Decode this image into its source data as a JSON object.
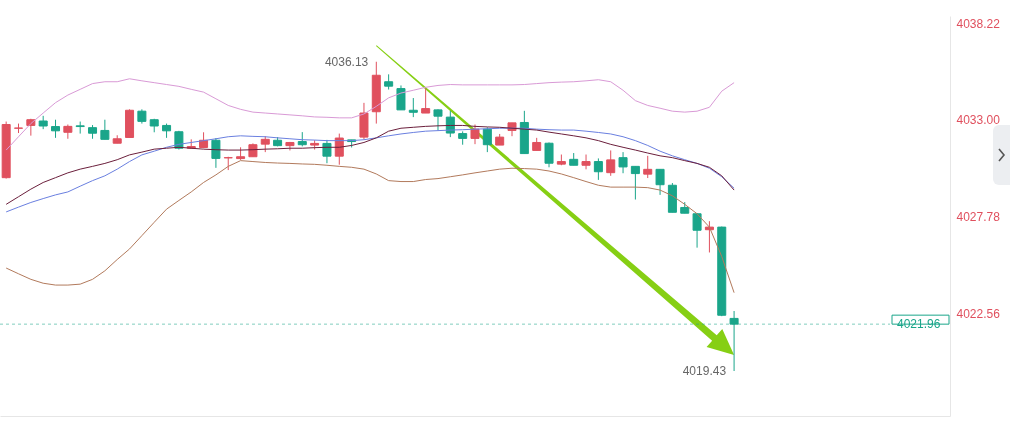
{
  "chart_data": {
    "type": "candlestick",
    "categories": [
      null,
      null,
      null,
      null,
      null,
      null,
      null,
      null,
      null,
      null,
      null,
      null,
      null,
      null,
      null,
      null,
      null,
      null,
      null,
      null,
      null,
      null,
      null,
      null,
      null,
      null,
      null,
      null,
      null,
      null,
      null,
      null,
      null,
      null,
      null,
      null,
      null,
      null,
      null,
      null,
      null,
      null,
      null,
      null,
      null,
      null,
      null,
      null,
      null,
      null,
      null,
      null,
      null,
      null,
      null,
      null,
      null,
      null,
      null,
      null,
      null,
      null,
      null,
      null,
      null,
      null,
      null,
      null,
      null,
      null,
      null,
      null,
      null,
      null,
      null,
      null,
      null
    ],
    "ohlc": [
      [
        4029.87,
        4032.9,
        4029.82,
        4032.74
      ],
      [
        4032.54,
        4032.79,
        4032.28,
        4032.55
      ],
      [
        4032.69,
        4033.05,
        4032.14,
        4033.0
      ],
      [
        4032.93,
        4033.21,
        4032.49,
        4032.66
      ],
      [
        4032.63,
        4033.0,
        4032.02,
        4032.4
      ],
      [
        4032.32,
        4032.74,
        4031.97,
        4032.64
      ],
      [
        4032.67,
        4032.9,
        4032.25,
        4032.63
      ],
      [
        4032.57,
        4032.71,
        4031.97,
        4032.27
      ],
      [
        4032.42,
        4033.0,
        4031.94,
        4031.94
      ],
      [
        4031.73,
        4032.16,
        4031.73,
        4031.97
      ],
      [
        4032.04,
        4033.56,
        4032.04,
        4033.51
      ],
      [
        4033.46,
        4033.56,
        4032.79,
        4032.91
      ],
      [
        4033.0,
        4033.05,
        4032.32,
        4032.66
      ],
      [
        4032.69,
        4032.79,
        4032.02,
        4032.4
      ],
      [
        4032.35,
        4032.4,
        4031.39,
        4031.46
      ],
      [
        4031.46,
        4031.94,
        4031.46,
        4031.55
      ],
      [
        4031.5,
        4032.32,
        4031.46,
        4031.89
      ],
      [
        4031.89,
        4032.01,
        4030.4,
        4030.91
      ],
      [
        4030.94,
        4031.0,
        4030.28,
        4030.95
      ],
      [
        4030.9,
        4031.51,
        4030.83,
        4031.0
      ],
      [
        4031.0,
        4031.72,
        4031.0,
        4031.65
      ],
      [
        4031.68,
        4032.11,
        4031.25,
        4031.94
      ],
      [
        4031.89,
        4032.06,
        4031.56,
        4031.6
      ],
      [
        4031.6,
        4031.8,
        4031.34,
        4031.77
      ],
      [
        4031.82,
        4032.33,
        4031.56,
        4031.65
      ],
      [
        4031.63,
        4031.89,
        4031.39,
        4031.72
      ],
      [
        4031.72,
        4031.91,
        4030.65,
        4031.03
      ],
      [
        4031.03,
        4032.25,
        4030.57,
        4032.01
      ],
      [
        4031.91,
        4031.91,
        4031.5,
        4031.82
      ],
      [
        4032.06,
        4033.91,
        4031.94,
        4033.36
      ],
      [
        4033.43,
        4036.13,
        4032.79,
        4035.4
      ],
      [
        4035.05,
        4035.45,
        4034.63,
        4034.81
      ],
      [
        4034.68,
        4034.85,
        4033.53,
        4033.53
      ],
      [
        4033.51,
        4034.17,
        4033.14,
        4033.4
      ],
      [
        4033.36,
        4034.68,
        4033.36,
        4033.6
      ],
      [
        4033.53,
        4033.56,
        4032.42,
        4033.19
      ],
      [
        4033.14,
        4033.48,
        4032.06,
        4032.28
      ],
      [
        4032.25,
        4032.37,
        4031.65,
        4031.99
      ],
      [
        4031.99,
        4032.74,
        4031.68,
        4032.49
      ],
      [
        4032.49,
        4032.59,
        4031.25,
        4031.65
      ],
      [
        4031.63,
        4032.23,
        4031.63,
        4032.06
      ],
      [
        4032.42,
        4032.83,
        4032.11,
        4032.83
      ],
      [
        4032.85,
        4033.48,
        4031.17,
        4031.17
      ],
      [
        4031.34,
        4032.02,
        4031.34,
        4031.77
      ],
      [
        4031.73,
        4031.77,
        4030.43,
        4030.65
      ],
      [
        4030.6,
        4031.12,
        4030.54,
        4030.74
      ],
      [
        4030.86,
        4031.2,
        4030.54,
        4030.54
      ],
      [
        4030.54,
        4031.12,
        4030.32,
        4030.74
      ],
      [
        4030.74,
        4030.91,
        4029.75,
        4030.19
      ],
      [
        4030.14,
        4031.34,
        4029.97,
        4030.83
      ],
      [
        4030.95,
        4031.25,
        4030.11,
        4030.45
      ],
      [
        4030.48,
        4030.48,
        4028.69,
        4030.09
      ],
      [
        4030.06,
        4031.05,
        4029.85,
        4030.32
      ],
      [
        4030.32,
        4030.32,
        4028.94,
        4029.49
      ],
      [
        4029.46,
        4029.58,
        4028.0,
        4028.0
      ],
      [
        4028.26,
        4028.55,
        4027.95,
        4027.95
      ],
      [
        4027.92,
        4027.95,
        4026.09,
        4027.03
      ],
      [
        4027.06,
        4027.52,
        4025.83,
        4027.2
      ],
      [
        4027.2,
        4027.23,
        4022.39,
        4022.44
      ],
      [
        4022.27,
        4022.67,
        4019.43,
        4021.96
      ],
      null,
      null,
      null,
      null,
      null,
      null,
      null,
      null,
      null,
      null,
      null,
      null,
      null,
      null,
      null,
      null,
      null
    ],
    "colors": [
      "#e0505e",
      "#e0505e",
      "#e0505e",
      "#1aa58a",
      "#1aa58a",
      "#e0505e",
      "#1aa58a",
      "#1aa58a",
      "#1aa58a",
      "#e0505e",
      "#e0505e",
      "#1aa58a",
      "#1aa58a",
      "#1aa58a",
      "#1aa58a",
      "#e0505e",
      "#e0505e",
      "#1aa58a",
      "#e0505e",
      "#e0505e",
      "#e0505e",
      "#e0505e",
      "#1aa58a",
      "#e0505e",
      "#1aa58a",
      "#e0505e",
      "#1aa58a",
      "#e0505e",
      "#1aa58a",
      "#e0505e",
      "#e0505e",
      "#1aa58a",
      "#1aa58a",
      "#1aa58a",
      "#e0505e",
      "#1aa58a",
      "#1aa58a",
      "#1aa58a",
      "#e0505e",
      "#1aa58a",
      "#e0505e",
      "#e0505e",
      "#1aa58a",
      "#e0505e",
      "#1aa58a",
      "#e0505e",
      "#1aa58a",
      "#e0505e",
      "#1aa58a",
      "#e0505e",
      "#1aa58a",
      "#1aa58a",
      "#e0505e",
      "#1aa58a",
      "#1aa58a",
      "#1aa58a",
      "#1aa58a",
      "#e0505e",
      "#1aa58a",
      "#1aa58a",
      null,
      null,
      null,
      null,
      null,
      null,
      null,
      null,
      null,
      null,
      null,
      null,
      null,
      null,
      null,
      null,
      null
    ],
    "series": [
      {
        "type": "line",
        "color": "#d99ad6",
        "values": [
          4031.36,
          4032.08,
          4032.79,
          4033.36,
          4033.92,
          4034.33,
          4034.64,
          4034.95,
          4035.05,
          4035.05,
          4035.21,
          4035.1,
          4035.0,
          4034.9,
          4034.8,
          4034.64,
          4034.49,
          4034.13,
          4033.77,
          4033.56,
          4033.41,
          4033.36,
          4033.31,
          4033.26,
          4033.21,
          4033.15,
          4033.13,
          4033.1,
          4033.1,
          4033.31,
          4033.72,
          4034.18,
          4034.44,
          4034.59,
          4034.75,
          4034.85,
          4034.9,
          4034.88,
          4034.88,
          4034.88,
          4034.88,
          4034.88,
          4034.9,
          4034.95,
          4035.0,
          4035.03,
          4035.05,
          4035.1,
          4035.16,
          4035.05,
          4034.59,
          4034.03,
          4033.77,
          4033.62,
          4033.46,
          4033.41,
          4033.46,
          4033.67,
          4034.54,
          4035.0,
          null,
          null,
          null,
          null,
          null,
          null,
          null,
          null,
          null,
          null,
          null,
          null,
          null,
          null,
          null,
          null,
          null
        ]
      },
      {
        "type": "line",
        "color": "#6a7fe0",
        "values": [
          4028.02,
          4028.28,
          4028.53,
          4028.74,
          4028.94,
          4029.1,
          4029.41,
          4029.71,
          4029.97,
          4030.33,
          4030.74,
          4031.1,
          4031.3,
          4031.51,
          4031.67,
          4031.77,
          4031.87,
          4031.97,
          4032.08,
          4032.13,
          4032.1,
          4032.08,
          4032.02,
          4031.97,
          4031.92,
          4031.9,
          4031.87,
          4031.87,
          4031.87,
          4031.92,
          4032.02,
          4032.13,
          4032.23,
          4032.31,
          4032.38,
          4032.41,
          4032.44,
          4032.46,
          4032.49,
          4032.51,
          4032.54,
          4032.54,
          4032.54,
          4032.49,
          4032.46,
          4032.44,
          4032.44,
          4032.38,
          4032.31,
          4032.23,
          4032.08,
          4031.87,
          4031.61,
          4031.3,
          4031.05,
          4030.84,
          4030.64,
          4030.38,
          4029.92,
          4029.3,
          null,
          null,
          null,
          null,
          null,
          null,
          null,
          null,
          null,
          null,
          null,
          null,
          null,
          null,
          null,
          null,
          null
        ]
      },
      {
        "type": "line",
        "color": "#6b1f3c",
        "values": [
          4028.43,
          4028.84,
          4029.25,
          4029.61,
          4029.87,
          4030.13,
          4030.33,
          4030.48,
          4030.64,
          4030.84,
          4031.1,
          4031.25,
          4031.41,
          4031.46,
          4031.51,
          4031.46,
          4031.41,
          4031.38,
          4031.36,
          4031.36,
          4031.38,
          4031.41,
          4031.43,
          4031.46,
          4031.46,
          4031.49,
          4031.51,
          4031.51,
          4031.61,
          4031.77,
          4032.02,
          4032.38,
          4032.54,
          4032.59,
          4032.64,
          4032.67,
          4032.69,
          4032.69,
          4032.64,
          4032.61,
          4032.59,
          4032.54,
          4032.49,
          4032.44,
          4032.33,
          4032.23,
          4032.13,
          4032.02,
          4031.87,
          4031.67,
          4031.51,
          4031.36,
          4031.2,
          4031.05,
          4030.95,
          4030.79,
          4030.64,
          4030.43,
          4029.97,
          4029.2,
          null,
          null,
          null,
          null,
          null,
          null,
          null,
          null,
          null,
          null,
          null,
          null,
          null,
          null,
          null,
          null,
          null
        ]
      },
      {
        "type": "line",
        "color": "#b27a5c",
        "values": [
          4024.99,
          4024.68,
          4024.38,
          4024.17,
          4024.07,
          4024.07,
          4024.12,
          4024.38,
          4024.84,
          4025.45,
          4026.02,
          4026.74,
          4027.46,
          4028.17,
          4028.64,
          4029.1,
          4029.61,
          4030.02,
          4030.48,
          4030.79,
          4030.74,
          4030.69,
          4030.66,
          4030.64,
          4030.61,
          4030.59,
          4030.54,
          4030.48,
          4030.43,
          4030.33,
          4030.07,
          4029.71,
          4029.66,
          4029.66,
          4029.77,
          4029.82,
          4029.92,
          4030.02,
          4030.13,
          4030.23,
          4030.33,
          4030.38,
          4030.36,
          4030.33,
          4030.23,
          4030.07,
          4029.87,
          4029.66,
          4029.46,
          4029.36,
          4029.36,
          4029.36,
          4029.33,
          4029.2,
          4028.89,
          4028.43,
          4027.92,
          4027.2,
          4025.61,
          4023.66,
          null,
          null,
          null,
          null,
          null,
          null,
          null,
          null,
          null,
          null,
          null,
          null,
          null,
          null,
          null,
          null,
          null
        ]
      }
    ],
    "ylim": [
      4017.0,
      4038.6
    ],
    "yticks": [
      {
        "value": 4038.22,
        "label": "4038.22"
      },
      {
        "value": 4033.0,
        "label": "4033.00"
      },
      {
        "value": 4027.78,
        "label": "4027.78"
      },
      {
        "value": 4022.56,
        "label": "4022.56"
      }
    ],
    "ref_lines": [
      {
        "axis": "y",
        "value": 4021.96,
        "label": "4021.96",
        "color": "#1aa58a",
        "line_style": "dashed"
      }
    ],
    "annotations": [
      "4036.13",
      "4019.43"
    ],
    "tick_labels": "y",
    "grid": false
  }
}
